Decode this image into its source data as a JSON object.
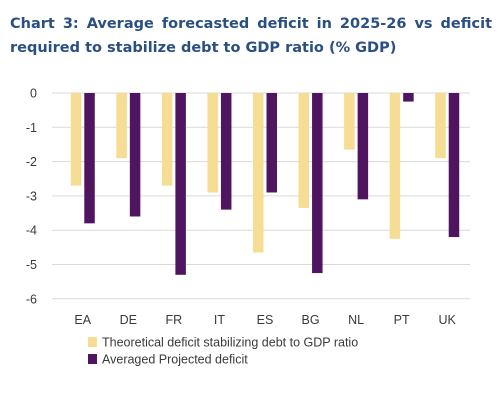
{
  "chart_data": {
    "type": "bar",
    "title": "Chart 3: Average forecasted deficit in 2025-26 vs deficit required to stabilize debt to GDP ratio (% GDP)",
    "categories": [
      "EA",
      "DE",
      "FR",
      "IT",
      "ES",
      "BG",
      "NL",
      "PT",
      "UK"
    ],
    "series": [
      {
        "name": "Theoretical deficit stabilizing debt to GDP ratio",
        "color": "#f5dd94",
        "values": [
          -2.7,
          -1.9,
          -2.7,
          -2.9,
          -4.65,
          -3.35,
          -1.65,
          -4.25,
          -1.9
        ]
      },
      {
        "name": "Averaged Projected deficit",
        "color": "#4f1560",
        "values": [
          -3.8,
          -3.6,
          -5.3,
          -3.4,
          -2.9,
          -5.25,
          -3.1,
          -0.25,
          -4.2
        ]
      }
    ],
    "yticks": [
      "0",
      "-1",
      "-2",
      "-3",
      "-4",
      "-5",
      "-6"
    ],
    "ylim": [
      -6,
      0
    ],
    "grid": true,
    "legend": "bottom-left"
  }
}
